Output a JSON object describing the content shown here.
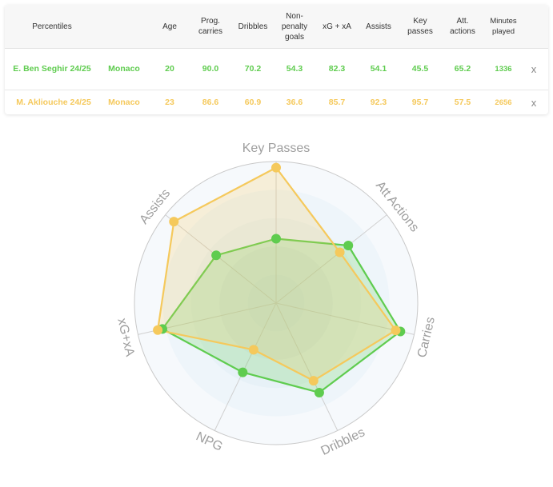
{
  "table": {
    "headers": {
      "percentiles": "Percentiles",
      "age": "Age",
      "prog_carries": "Prog. carries",
      "dribbles": "Dribbles",
      "npg": "Non-penalty goals",
      "xg_xa": "xG + xA",
      "assists": "Assists",
      "key_passes": "Key passes",
      "att_actions": "Att. actions",
      "minutes": "Minutes played"
    },
    "rows": [
      {
        "name": "E. Ben Seghir 24/25",
        "team": "Monaco",
        "age": "20",
        "prog_carries": "90.0",
        "dribbles": "70.2",
        "npg": "54.3",
        "xg_xa": "82.3",
        "assists": "54.1",
        "key_passes": "45.5",
        "att_actions": "65.2",
        "minutes": "1336",
        "remove": "x"
      },
      {
        "name": "M. Akliouche 24/25",
        "team": "Monaco",
        "age": "23",
        "prog_carries": "86.6",
        "dribbles": "60.9",
        "npg": "36.6",
        "xg_xa": "85.7",
        "assists": "92.3",
        "key_passes": "95.7",
        "att_actions": "57.5",
        "minutes": "2656",
        "remove": "x"
      }
    ]
  },
  "chart_data": {
    "type": "radar",
    "axes": [
      "Key Passes",
      "Att Actions",
      "Carries",
      "Dribbles",
      "NPG",
      "xG+xA",
      "Assists"
    ],
    "range": [
      0,
      100
    ],
    "series": [
      {
        "name": "E. Ben Seghir 24/25",
        "color": "#5fcc4f",
        "values": [
          45.5,
          65.2,
          90.0,
          70.2,
          54.3,
          82.3,
          54.1
        ]
      },
      {
        "name": "M. Akliouche 24/25",
        "color": "#f5c95c",
        "values": [
          95.7,
          57.5,
          86.6,
          60.9,
          36.6,
          85.7,
          92.3
        ]
      }
    ]
  }
}
